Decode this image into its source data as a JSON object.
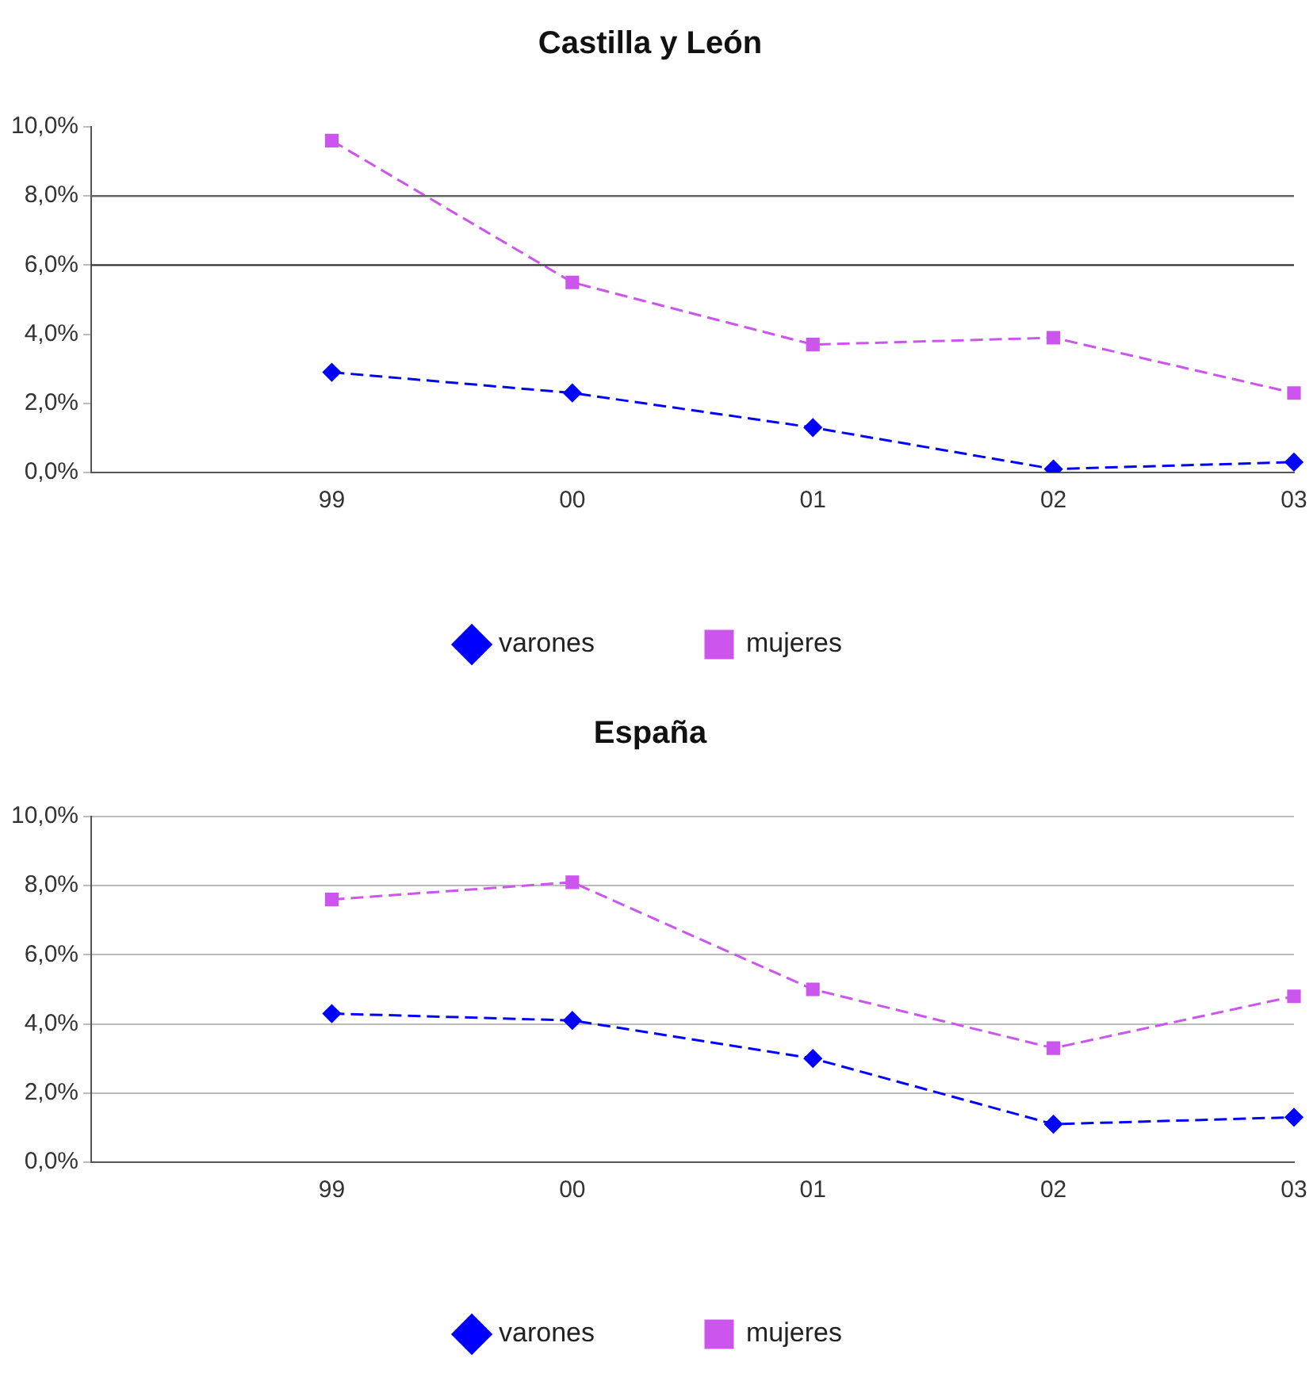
{
  "chart_data": [
    {
      "type": "line",
      "title": "Castilla y León",
      "categories": [
        null,
        "99",
        "00",
        "01",
        "02",
        "03"
      ],
      "series": [
        {
          "name": "varones",
          "color": "#0000ff",
          "values": [
            null,
            2.9,
            2.3,
            1.3,
            0.1,
            0.3
          ],
          "marker": "diamond",
          "line_style": "dashed"
        },
        {
          "name": "mujeres",
          "color": "#cc55ee",
          "values": [
            null,
            9.6,
            5.5,
            3.7,
            3.9,
            2.3
          ],
          "marker": "square",
          "line_style": "dashed"
        }
      ],
      "ylim": [
        0,
        10
      ],
      "yticks": [
        {
          "value": 0,
          "label": "0,0%"
        },
        {
          "value": 2,
          "label": "2,0%"
        },
        {
          "value": 4,
          "label": "4,0%"
        },
        {
          "value": 6,
          "label": "6,0%"
        },
        {
          "value": 8,
          "label": "8,0%"
        },
        {
          "value": 10,
          "label": "10,0%"
        }
      ],
      "ref_lines": [
        {
          "axis": "y",
          "value": 8,
          "color": "#666666"
        },
        {
          "axis": "y",
          "value": 6,
          "color": "#333333"
        }
      ],
      "legend": "bottom"
    },
    {
      "type": "line",
      "title": "España",
      "categories": [
        null,
        "99",
        "00",
        "01",
        "02",
        "03"
      ],
      "series": [
        {
          "name": "varones",
          "color": "#0000ff",
          "values": [
            null,
            4.3,
            4.1,
            3.0,
            1.1,
            1.3
          ],
          "marker": "diamond",
          "line_style": "dashed"
        },
        {
          "name": "mujeres",
          "color": "#cc55ee",
          "values": [
            null,
            7.6,
            8.1,
            5.0,
            3.3,
            4.8
          ],
          "marker": "square",
          "line_style": "dashed"
        }
      ],
      "ylim": [
        0,
        10
      ],
      "yticks": [
        {
          "value": 0,
          "label": "0,0%"
        },
        {
          "value": 2,
          "label": "2,0%"
        },
        {
          "value": 4,
          "label": "4,0%"
        },
        {
          "value": 6,
          "label": "6,0%"
        },
        {
          "value": 8,
          "label": "8,0%"
        },
        {
          "value": 10,
          "label": "10,0%"
        }
      ],
      "grid": "y",
      "legend": "bottom"
    }
  ]
}
